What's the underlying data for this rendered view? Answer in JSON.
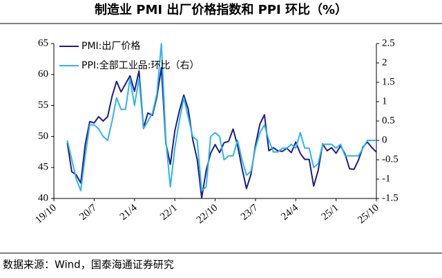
{
  "chart_data": {
    "type": "line",
    "title": "制造业 PMI 出厂价格指数和 PPI 环比（%）",
    "source": "数据来源：Wind，国泰海通证券研究",
    "categories": [
      "19/10",
      null,
      null,
      null,
      null,
      null,
      null,
      null,
      null,
      "20/7",
      null,
      null,
      null,
      null,
      null,
      null,
      null,
      null,
      "21/4",
      null,
      null,
      null,
      null,
      null,
      null,
      null,
      null,
      "22/1",
      null,
      null,
      null,
      null,
      null,
      null,
      null,
      null,
      "22/10",
      null,
      null,
      null,
      null,
      null,
      null,
      null,
      null,
      "23/7",
      null,
      null,
      null,
      null,
      null,
      null,
      null,
      null,
      "24/4",
      null,
      null,
      null,
      null,
      null,
      null,
      null,
      null,
      "25/1",
      null,
      null,
      null,
      null,
      null,
      null,
      null,
      null,
      "25/10"
    ],
    "series": [
      {
        "name": "PMI:出厂价格",
        "color": "#1c1c8c",
        "values": [
          null,
          null,
          null,
          49.0,
          44.3,
          43.8,
          42.5,
          48.7,
          52.4,
          52.2,
          53.2,
          52.5,
          53.2,
          56.5,
          58.9,
          57.2,
          58.5,
          59.8,
          57.3,
          60.6,
          51.4,
          53.8,
          53.4,
          56.4,
          61.1,
          48.9,
          45.5,
          50.9,
          54.1,
          56.7,
          54.4,
          49.5,
          46.3,
          40.1,
          44.5,
          47.3,
          48.7,
          47.4,
          49.0,
          49.2,
          51.2,
          48.6,
          44.9,
          41.6,
          43.9,
          48.6,
          52.0,
          53.5,
          47.7,
          48.2,
          47.7,
          47.6,
          48.1,
          47.4,
          49.1,
          47.3,
          46.3,
          46.3,
          42.0,
          44.5,
          48.8,
          47.7,
          48.2,
          47.3,
          48.5,
          47.2,
          44.8,
          44.7,
          46.2,
          48.3,
          49.1,
          48.2,
          47.5
        ]
      },
      {
        "name": "PPI:全部工业品:环比（右）",
        "color": "#2eb3ee",
        "axis": "y2",
        "values": [
          null,
          null,
          null,
          0.0,
          -0.5,
          -1.0,
          -1.3,
          -0.4,
          0.4,
          0.4,
          0.3,
          0.1,
          0.0,
          0.5,
          1.1,
          0.8,
          0.8,
          1.6,
          0.9,
          1.6,
          0.3,
          0.5,
          0.7,
          1.2,
          2.5,
          0.0,
          -1.2,
          -0.2,
          0.5,
          1.1,
          0.6,
          0.1,
          0.0,
          -1.3,
          -1.2,
          0.1,
          0.2,
          0.1,
          -0.5,
          -0.4,
          -0.4,
          0.0,
          -0.5,
          -0.9,
          -0.8,
          -0.2,
          0.2,
          0.4,
          0.0,
          -0.3,
          -0.3,
          -0.2,
          -0.2,
          -0.1,
          -0.2,
          0.2,
          -0.2,
          -0.2,
          -0.7,
          -0.6,
          -0.1,
          -0.1,
          -0.1,
          -0.2,
          -0.1,
          -0.4,
          -0.4,
          -0.4,
          -0.4,
          -0.2,
          0.0,
          0.0,
          0.0
        ]
      }
    ],
    "ylim": [
      40,
      65
    ],
    "yticks": [
      40,
      45,
      50,
      55,
      60,
      65
    ],
    "y2lim": [
      -1.5,
      2.5
    ],
    "y2ticks": [
      -1.5,
      -1,
      -0.5,
      0,
      0.5,
      1,
      1.5,
      2,
      2.5
    ],
    "legend": "upper-left"
  }
}
